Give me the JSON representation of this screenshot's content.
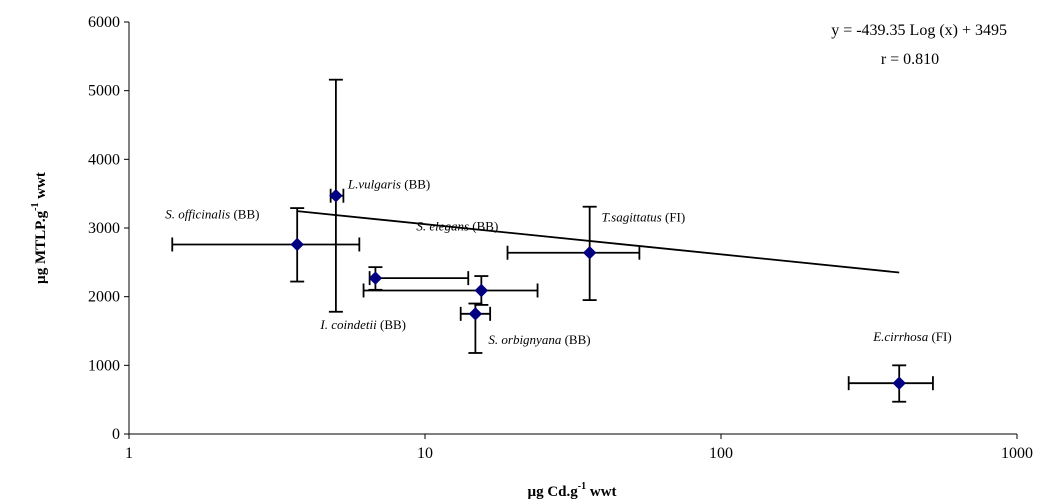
{
  "chart_data": {
    "type": "scatter",
    "x_scale": "log",
    "xlim": [
      1,
      1000
    ],
    "ylim": [
      0,
      6000
    ],
    "x_ticks": [
      "1",
      "10",
      "100",
      "1000"
    ],
    "y_ticks": [
      "0",
      "1000",
      "2000",
      "3000",
      "4000",
      "5000",
      "6000"
    ],
    "xlabel": {
      "main": "µg Cd.g",
      "sup": "-1",
      "tail": " wwt"
    },
    "ylabel": {
      "main": "µg MTLP.g",
      "sup": "-1",
      "tail": " wwt"
    },
    "annotation": {
      "equation": "y = -439.35 Log (x) + 3495",
      "r_value": "r = 0.810"
    },
    "trendline": {
      "x_start": 3.7,
      "x_end": 400
    },
    "marker_color": "#000080",
    "points": [
      {
        "species": "S. officinalis",
        "region": "(BB)",
        "x": 3.7,
        "y": 2760,
        "x_err": [
          1.4,
          6.0
        ],
        "y_err": [
          2220,
          3290
        ]
      },
      {
        "species": "L.vulgaris",
        "region": "(BB)",
        "x": 5.0,
        "y": 3470,
        "x_err": [
          4.8,
          5.3
        ],
        "y_err": [
          1780,
          5160
        ]
      },
      {
        "species": "I. coindetii",
        "region": "(BB)",
        "x": 6.8,
        "y": 2270,
        "x_err": [
          6.5,
          14.0
        ],
        "y_err": [
          2100,
          2430
        ]
      },
      {
        "species": "S. elegans",
        "region": "(BB)",
        "x": 15.5,
        "y": 2090,
        "x_err": [
          6.2,
          24.0
        ],
        "y_err": [
          1880,
          2300
        ]
      },
      {
        "species": "S. orbignyana",
        "region": "(BB)",
        "x": 14.8,
        "y": 1750,
        "x_err": [
          13.2,
          16.6
        ],
        "y_err": [
          1180,
          1900
        ]
      },
      {
        "species": "T.sagittatus",
        "region": "(FI)",
        "x": 36.0,
        "y": 2640,
        "x_err": [
          19.0,
          53.0
        ],
        "y_err": [
          1950,
          3310
        ]
      },
      {
        "species": "E.cirrhosa",
        "region": "(FI)",
        "x": 400.0,
        "y": 740,
        "x_err": [
          270.0,
          520.0
        ],
        "y_err": [
          470,
          1000
        ]
      }
    ]
  }
}
